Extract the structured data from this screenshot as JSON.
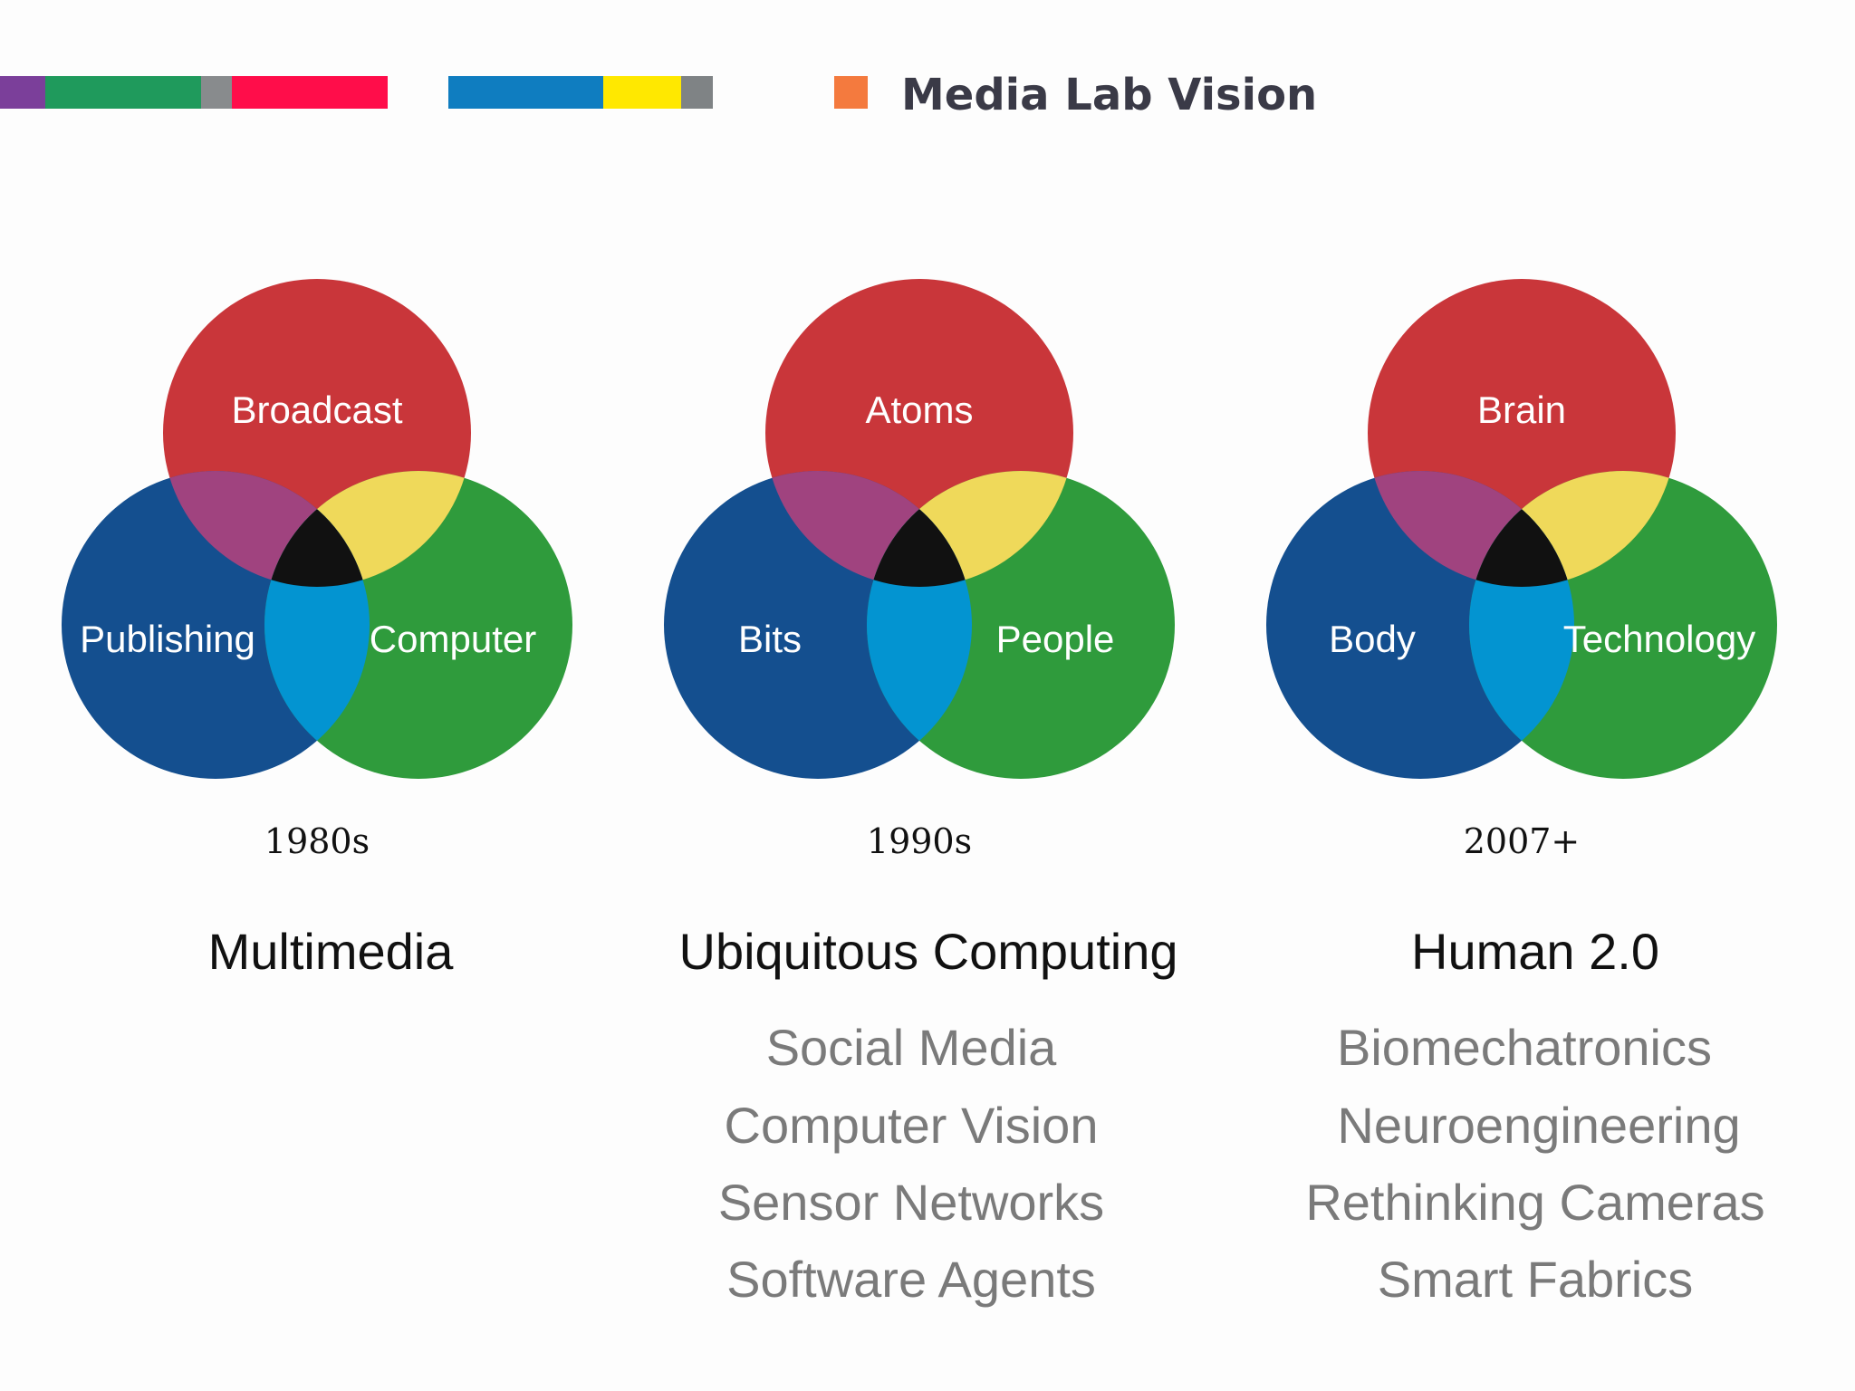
{
  "header": {
    "title": "Media Lab Vision",
    "color_strip": [
      "#7b3f9a",
      "#1f9a5c",
      "#888b8d",
      "#ff0d4a",
      "#0f7dc0",
      "#ffe800",
      "#7f8385"
    ],
    "title_marker_color": "#f47a3e"
  },
  "venn_colors": {
    "top": "#c9363a",
    "left": "#144f8f",
    "right": "#2f9b3c",
    "top_left": "#a0437f",
    "top_right": "#efd95a",
    "left_right": "#0394d1",
    "center": "#111111"
  },
  "diagrams": [
    {
      "top": "Broadcast",
      "left": "Publishing",
      "right": "Computer",
      "era": "1980s",
      "heading": "Multimedia",
      "topics": []
    },
    {
      "top": "Atoms",
      "left": "Bits",
      "right": "People",
      "era": "1990s",
      "heading": "Ubiquitous Computing",
      "topics": [
        "Social Media",
        "Computer Vision",
        "Sensor Networks",
        "Software Agents"
      ]
    },
    {
      "top": "Brain",
      "left": "Body",
      "right": "Technology",
      "era": "2007+",
      "heading": "Human 2.0",
      "topics": [
        "Biomechatronics",
        "Neuroengineering",
        "Rethinking Cameras",
        "Smart Fabrics"
      ]
    }
  ]
}
